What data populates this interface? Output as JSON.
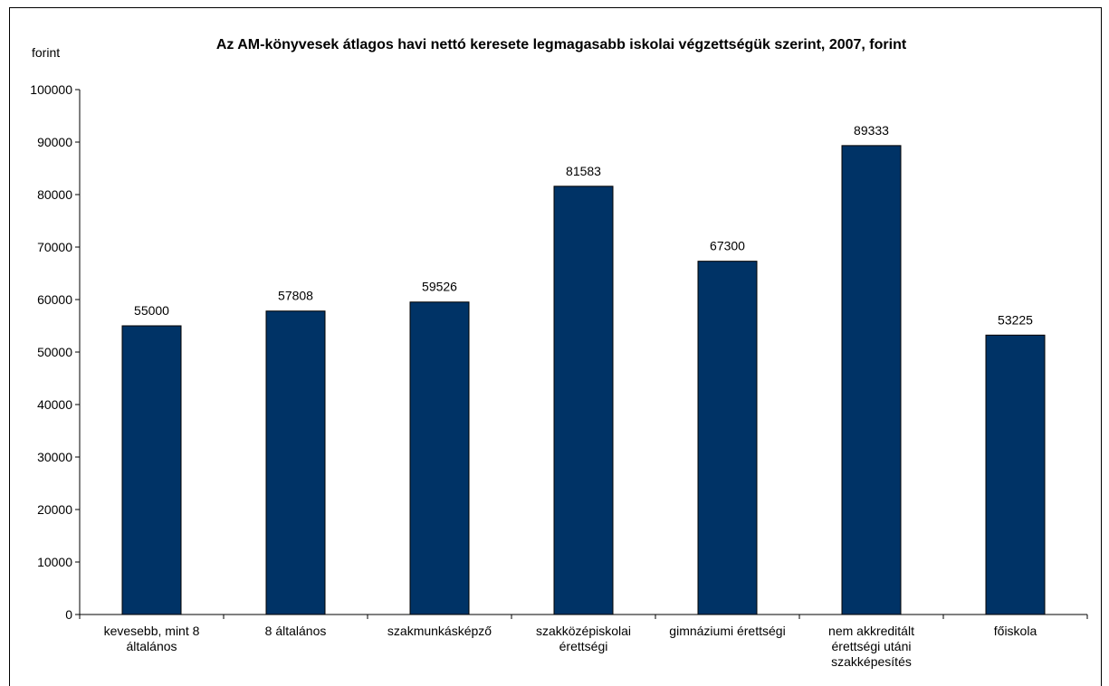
{
  "chart_data": {
    "type": "bar",
    "title": "Az AM-könyvesek átlagos havi nettó keresete legmagasabb iskolai végzettségük szerint, 2007, forint",
    "y_label": "forint",
    "categories": [
      "kevesebb, mint 8 általános",
      "8 általános",
      "szakmunkásképző",
      "szakközépiskolai érettségi",
      "gimnáziumi érettségi",
      "nem akkreditált érettségi utáni szakképesítés",
      "főiskola"
    ],
    "values": [
      55000,
      57808,
      59526,
      81583,
      67300,
      89333,
      53225
    ],
    "color": "#003366",
    "ylim": [
      0,
      100000
    ],
    "yticks": [
      0,
      10000,
      20000,
      30000,
      40000,
      50000,
      60000,
      70000,
      80000,
      90000,
      100000
    ],
    "grid": false
  }
}
